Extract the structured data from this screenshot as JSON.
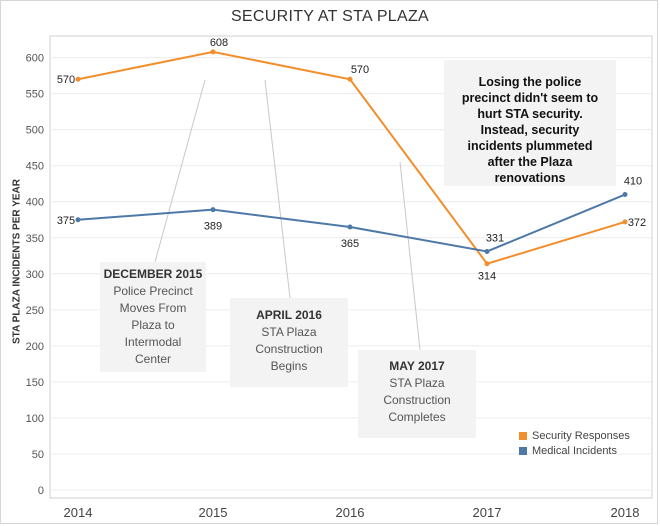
{
  "chart_data": {
    "type": "line",
    "title": "SECURITY AT STA PLAZA",
    "xlabel": "",
    "ylabel": "STA PLAZA INCIDENTS PER YEAR",
    "x": [
      "2014",
      "2015",
      "2016",
      "2017",
      "2018"
    ],
    "yticks": [
      "0",
      "50",
      "100",
      "150",
      "200",
      "250",
      "300",
      "350",
      "400",
      "450",
      "500",
      "550",
      "600"
    ],
    "ylim": [
      0,
      630
    ],
    "grid": "horizontal",
    "legend_position": "bottom-right",
    "series": [
      {
        "name": "Security Responses",
        "color": "#f28e2b",
        "values": [
          570,
          608,
          570,
          314,
          372
        ],
        "labels": [
          "570",
          "608",
          "570",
          "314",
          "372"
        ]
      },
      {
        "name": "Medical Incidents",
        "color": "#4e79a7",
        "values": [
          375,
          389,
          365,
          331,
          410
        ],
        "labels": [
          "375",
          "389",
          "365",
          "331",
          "410"
        ]
      }
    ],
    "annotations": [
      {
        "head": "DECEMBER 2015",
        "body": [
          "Police Precinct",
          "Moves From",
          "Plaza to",
          "Intermodal",
          "Center"
        ],
        "x": "2015"
      },
      {
        "head": "APRIL  2016",
        "body": [
          "STA Plaza",
          "Construction",
          "Begins"
        ],
        "x": "2015"
      },
      {
        "head": "MAY 2017",
        "body": [
          "STA Plaza",
          "Construction",
          "Completes"
        ],
        "x": "2016"
      }
    ],
    "note": [
      "Losing the police",
      "precinct didn't seem to",
      "hurt STA security.",
      "Instead, security",
      "incidents plummeted",
      "after the Plaza",
      "renovations"
    ]
  }
}
